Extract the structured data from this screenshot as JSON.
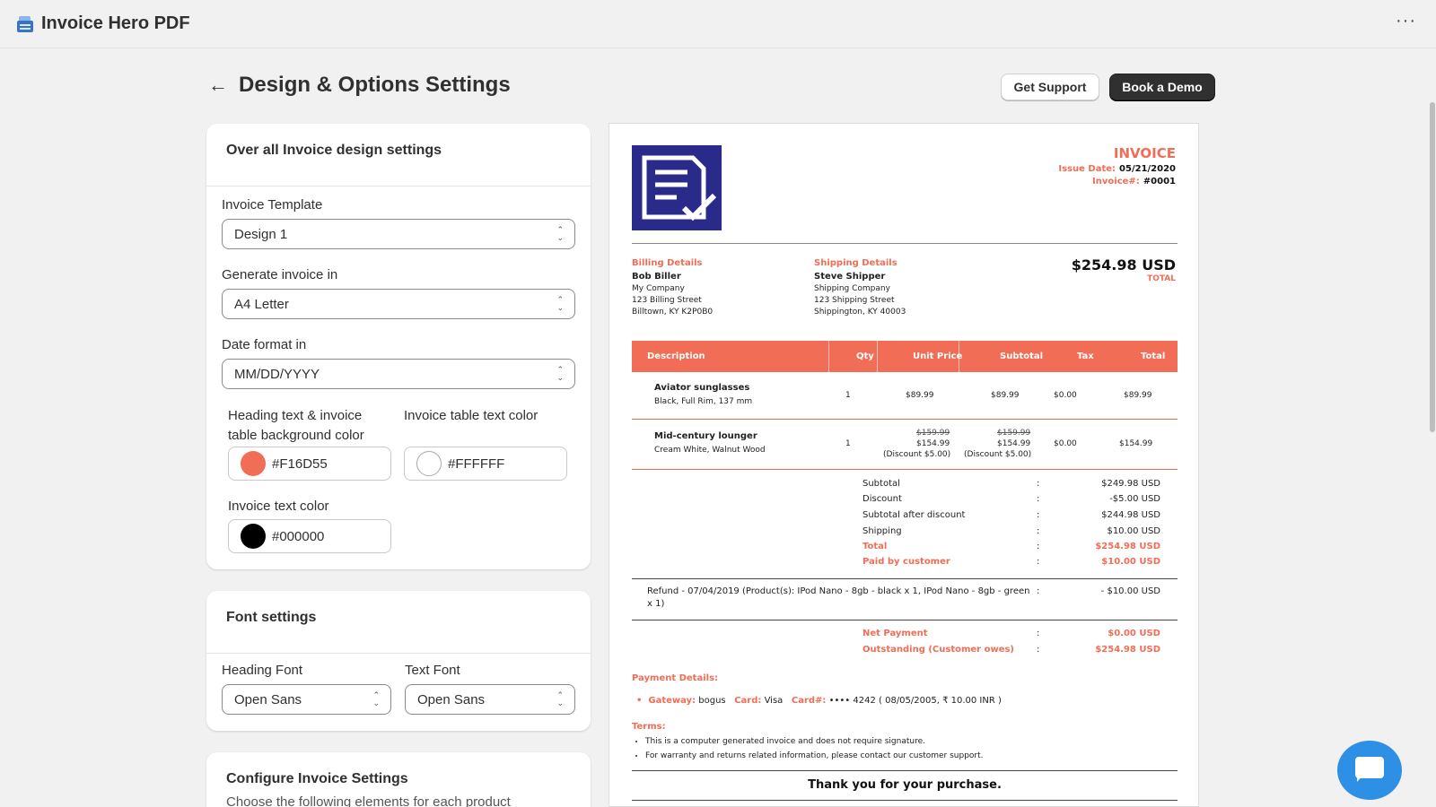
{
  "app": {
    "title": "Invoice Hero PDF",
    "icon": "printer-icon",
    "menu": "···"
  },
  "header": {
    "back": "←",
    "title": "Design & Options Settings",
    "support_label": "Get Support",
    "demo_label": "Book a Demo"
  },
  "design_card": {
    "title": "Over all Invoice design settings",
    "template_label": "Invoice Template",
    "template_value": "Design 1",
    "generate_label": "Generate invoice in",
    "generate_value": "A4 Letter",
    "date_label": "Date format in",
    "date_value": "MM/DD/YYYY",
    "heading_color_label_1": "Heading text & invoice",
    "heading_color_label_2": "table background color",
    "heading_color_value": "#F16D55",
    "table_text_color_label": "Invoice table text color",
    "table_text_color_value": "#FFFFFF",
    "text_color_label": "Invoice text color",
    "text_color_value": "#000000"
  },
  "font_card": {
    "title": "Font settings",
    "heading_font_label": "Heading Font",
    "heading_font_value": "Open Sans",
    "text_font_label": "Text Font",
    "text_font_value": "Open Sans"
  },
  "config_card": {
    "title": "Configure Invoice Settings",
    "subtitle": "Choose the following elements for each product"
  },
  "invoice": {
    "title": "INVOICE",
    "issue_date_label": "Issue Date:",
    "issue_date": "05/21/2020",
    "number_label": "Invoice#:",
    "number": "#0001",
    "billing": {
      "heading": "Billing Details",
      "name": "Bob Biller",
      "lines": [
        "My Company",
        "123 Billing Street",
        "Billtown, KY K2P0B0"
      ]
    },
    "shipping": {
      "heading": "Shipping Details",
      "name": "Steve Shipper",
      "lines": [
        "Shipping Company",
        "123 Shipping Street",
        "Shippington, KY 40003"
      ]
    },
    "total_amount": "$254.98 USD",
    "total_caption": "TOTAL",
    "columns": [
      "Description",
      "Qty",
      "Unit Price",
      "Subtotal",
      "Tax",
      "Total"
    ],
    "items": [
      {
        "name": "Aviator sunglasses",
        "variant": "Black, Full Rim, 137 mm",
        "qty": "1",
        "unit_price": "$89.99",
        "subtotal": "$89.99",
        "tax": "$0.00",
        "total": "$89.99"
      },
      {
        "name": "Mid-century lounger",
        "variant": "Cream White, Walnut Wood",
        "qty": "1",
        "unit_old": "$159.99",
        "unit_price": "$154.99",
        "unit_discount": "(Discount $5.00)",
        "sub_old": "$159.99",
        "subtotal": "$154.99",
        "sub_discount": "(Discount $5.00)",
        "tax": "$0.00",
        "total": "$154.99"
      }
    ],
    "summary": [
      {
        "label": "Subtotal",
        "value": "$249.98 USD"
      },
      {
        "label": "Discount",
        "value": "-$5.00 USD"
      },
      {
        "label": "Subtotal after discount",
        "value": "$244.98 USD"
      },
      {
        "label": "Shipping",
        "value": "$10.00 USD"
      },
      {
        "label": "Total",
        "value": "$254.98 USD"
      },
      {
        "label": "Paid by customer",
        "value": "$10.00 USD"
      }
    ],
    "refund_line_1": "Refund - 07/04/2019 (Product(s): IPod Nano - 8gb - black x 1, IPod Nano - 8gb - green",
    "refund_line_2": "x 1)",
    "refund_value": "- $10.00 USD",
    "net_payment_label": "Net Payment",
    "net_payment_value": "$0.00 USD",
    "outstanding_label": "Outstanding (Customer owes)",
    "outstanding_value": "$254.98 USD",
    "colon": ":",
    "payment_heading": "Payment Details:",
    "gateway_label": "Gateway:",
    "gateway_value": "bogus",
    "card_label": "Card:",
    "card_value": "Visa",
    "cardno_label": "Card#:",
    "cardno_value": "•••• 4242 ( 08/05/2005, ₹ 10.00 INR )",
    "terms_heading": "Terms:",
    "terms": [
      "This is a computer generated invoice and does not require signature.",
      "For warranty and returns related information, please contact our customer support."
    ],
    "thanks": "Thank you for your purchase."
  },
  "chat": {
    "icon": "chat-icon"
  }
}
